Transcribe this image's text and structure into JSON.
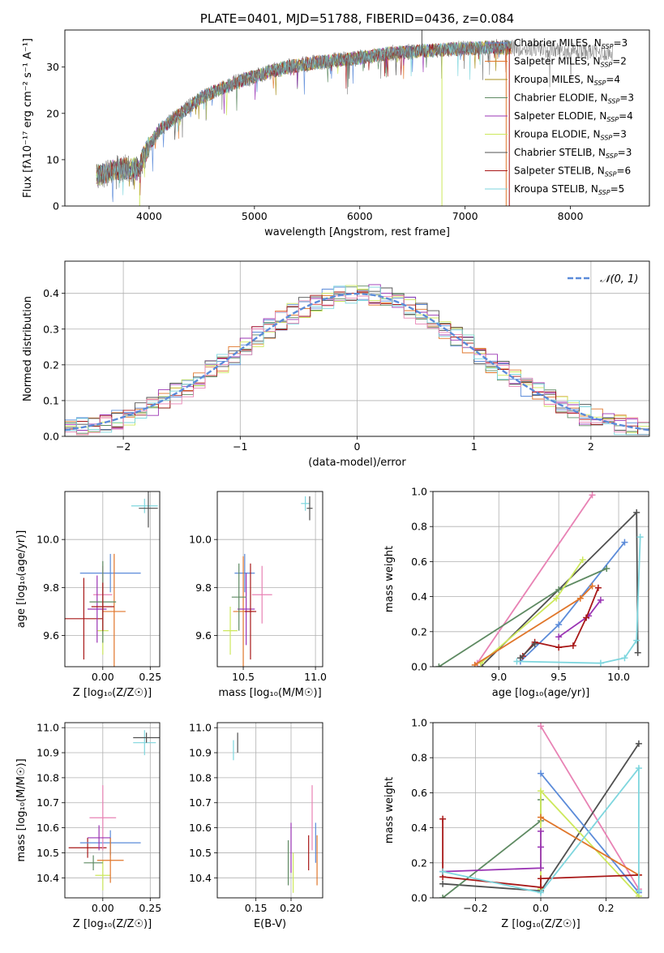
{
  "colors": {
    "chabrier_miles": "#5b8bd9",
    "salpeter_miles": "#e0762a",
    "kroupa_miles": "#a8901e",
    "chabrier_elodie": "#5e8a62",
    "salpeter_elodie": "#9a34b4",
    "kroupa_elodie": "#cde85c",
    "chabrier_stelib": "#505050",
    "salpeter_stelib": "#a81818",
    "kroupa_stelib": "#7ed6de",
    "extra_pink": "#e882b4",
    "normal_curve": "#5b8bd9"
  },
  "chart_data": [
    {
      "id": "spectrum",
      "type": "line",
      "title": "PLATE=0401, MJD=51788, FIBERID=0436, z=0.084",
      "xlabel": "wavelength [Angstrom, rest frame]",
      "ylabel": "Flux [fλ10⁻¹⁷ erg cm⁻² s⁻¹ A⁻¹]",
      "xlim": [
        3200,
        8750
      ],
      "ylim": [
        0,
        38
      ],
      "xticks": [
        "4000",
        "5000",
        "6000",
        "7000",
        "8000"
      ],
      "yticks": [
        "0",
        "10",
        "20",
        "30"
      ],
      "grid": false,
      "legend_position": "top-right",
      "continuum": {
        "wavelength": [
          3500,
          3700,
          3900,
          4000,
          4100,
          4300,
          4500,
          4800,
          5000,
          5300,
          5600,
          6000,
          6300,
          6600,
          7000,
          7300,
          7600,
          8000,
          8400
        ],
        "flux": [
          6.5,
          8.0,
          8.3,
          13.0,
          16.5,
          20.0,
          23.5,
          26.5,
          28.0,
          30.0,
          31.0,
          32.0,
          33.0,
          33.5,
          34.0,
          34.3,
          34.0,
          33.5,
          33.0
        ]
      },
      "series": [
        {
          "name": "Chabrier MILES",
          "nssp": "3",
          "color_key": "chabrier_miles"
        },
        {
          "name": "Salpeter MILES",
          "nssp": "2",
          "color_key": "salpeter_miles"
        },
        {
          "name": "Kroupa MILES",
          "nssp": "4",
          "color_key": "kroupa_miles"
        },
        {
          "name": "Chabrier ELODIE",
          "nssp": "3",
          "color_key": "chabrier_elodie"
        },
        {
          "name": "Salpeter ELODIE",
          "nssp": "4",
          "color_key": "salpeter_elodie"
        },
        {
          "name": "Kroupa ELODIE",
          "nssp": "3",
          "color_key": "kroupa_elodie"
        },
        {
          "name": "Chabrier STELIB",
          "nssp": "3",
          "color_key": "chabrier_stelib"
        },
        {
          "name": "Salpeter STELIB",
          "nssp": "6",
          "color_key": "salpeter_stelib"
        },
        {
          "name": "Kroupa STELIB",
          "nssp": "5",
          "color_key": "kroupa_stelib"
        }
      ],
      "spikes": [
        {
          "x": 3910,
          "y0": 5,
          "y1": 0,
          "color_key": "kroupa_elodie"
        },
        {
          "x": 6590,
          "y0": 33,
          "y1": 38,
          "color_key": "chabrier_stelib"
        },
        {
          "x": 6780,
          "y0": 33,
          "y1": 0,
          "color_key": "kroupa_elodie"
        },
        {
          "x": 7390,
          "y0": 34,
          "y1": 0,
          "color_key": "salpeter_miles"
        },
        {
          "x": 7420,
          "y0": 34,
          "y1": 0,
          "color_key": "salpeter_stelib"
        }
      ]
    },
    {
      "id": "residuals",
      "type": "histogram",
      "xlabel": "(data-model)/error",
      "ylabel": "Normed distribution",
      "xlim": [
        -2.5,
        2.5
      ],
      "ylim": [
        0,
        0.49
      ],
      "xticks": [
        "−2",
        "−1",
        "0",
        "1",
        "2"
      ],
      "yticks": [
        "0.0",
        "0.1",
        "0.2",
        "0.3",
        "0.4"
      ],
      "grid": true,
      "legend": "𝒩(0, 1)",
      "legend_position": "top-right",
      "bin_width": 0.1,
      "series_color_keys": [
        "chabrier_miles",
        "salpeter_miles",
        "chabrier_elodie",
        "salpeter_elodie",
        "kroupa_elodie",
        "chabrier_stelib",
        "salpeter_stelib",
        "kroupa_stelib",
        "extra_pink"
      ]
    },
    {
      "id": "z-age",
      "type": "errorbar",
      "xlabel": "Z [log₁₀(Z/Z☉)]",
      "ylabel": "age  [log₁₀(age/yr)]",
      "xlim": [
        -0.2,
        0.3
      ],
      "ylim": [
        9.47,
        10.2
      ],
      "xticks": [
        "0.00",
        "0.25"
      ],
      "yticks": [
        "9.6",
        "9.8",
        "10.0"
      ],
      "grid": true,
      "points": [
        {
          "x": -0.1,
          "y": 9.67,
          "xerr": 0.1,
          "yerr": 0.17,
          "color_key": "salpeter_stelib"
        },
        {
          "x": 0.0,
          "y": 9.62,
          "xerr": 0.03,
          "yerr": 0.1,
          "color_key": "kroupa_elodie"
        },
        {
          "x": 0.04,
          "y": 9.86,
          "xerr": 0.16,
          "yerr": 0.08,
          "color_key": "chabrier_miles"
        },
        {
          "x": 0.06,
          "y": 9.7,
          "xerr": 0.06,
          "yerr": 0.24,
          "color_key": "salpeter_miles"
        },
        {
          "x": 0.0,
          "y": 9.77,
          "xerr": 0.05,
          "yerr": 0.12,
          "color_key": "extra_pink"
        },
        {
          "x": -0.03,
          "y": 9.71,
          "xerr": 0.05,
          "yerr": 0.14,
          "color_key": "salpeter_elodie"
        },
        {
          "x": 0.0,
          "y": 9.74,
          "xerr": 0.07,
          "yerr": 0.17,
          "color_key": "chabrier_elodie"
        },
        {
          "x": 0.0,
          "y": 9.72,
          "xerr": 0.06,
          "yerr": 0.1,
          "color_key": "salpeter_stelib"
        },
        {
          "x": 0.22,
          "y": 10.14,
          "xerr": 0.07,
          "yerr": 0.03,
          "color_key": "kroupa_stelib"
        },
        {
          "x": 0.24,
          "y": 10.13,
          "xerr": 0.05,
          "yerr": 0.08,
          "color_key": "chabrier_stelib"
        }
      ]
    },
    {
      "id": "mass-age",
      "type": "errorbar",
      "xlabel": "mass [log₁₀(M/M☉)]",
      "ylabel": "",
      "xlim": [
        10.32,
        11.05
      ],
      "ylim": [
        9.47,
        10.2
      ],
      "xticks": [
        "10.5",
        "11.0"
      ],
      "yticks": [
        "9.6",
        "9.8",
        "10.0"
      ],
      "grid": true,
      "points": [
        {
          "x": 10.41,
          "y": 9.62,
          "xerr": 0.05,
          "yerr": 0.1,
          "color_key": "kroupa_elodie"
        },
        {
          "x": 10.51,
          "y": 9.86,
          "xerr": 0.07,
          "yerr": 0.08,
          "color_key": "chabrier_miles"
        },
        {
          "x": 10.5,
          "y": 9.7,
          "xerr": 0.07,
          "yerr": 0.23,
          "color_key": "salpeter_miles"
        },
        {
          "x": 10.63,
          "y": 9.77,
          "xerr": 0.07,
          "yerr": 0.12,
          "color_key": "extra_pink"
        },
        {
          "x": 10.52,
          "y": 9.71,
          "xerr": 0.06,
          "yerr": 0.15,
          "color_key": "salpeter_elodie"
        },
        {
          "x": 10.47,
          "y": 9.76,
          "xerr": 0.05,
          "yerr": 0.14,
          "color_key": "chabrier_elodie"
        },
        {
          "x": 10.55,
          "y": 9.7,
          "xerr": 0.04,
          "yerr": 0.2,
          "color_key": "salpeter_stelib"
        },
        {
          "x": 10.93,
          "y": 10.15,
          "xerr": 0.03,
          "yerr": 0.03,
          "color_key": "kroupa_stelib"
        },
        {
          "x": 10.96,
          "y": 10.13,
          "xerr": 0.02,
          "yerr": 0.05,
          "color_key": "chabrier_stelib"
        }
      ]
    },
    {
      "id": "age-weight",
      "type": "line",
      "xlabel": "age  [log₁₀(age/yr)]",
      "ylabel": "mass weight",
      "xlim": [
        8.45,
        10.25
      ],
      "ylim": [
        0,
        1
      ],
      "xticks": [
        "9.0",
        "9.5",
        "10.0"
      ],
      "yticks": [
        "0.0",
        "0.2",
        "0.4",
        "0.6",
        "0.8",
        "1.0"
      ],
      "grid": true,
      "series": [
        {
          "color_key": "extra_pink",
          "x": [
            8.82,
            9.78
          ],
          "y": [
            0.02,
            0.98
          ]
        },
        {
          "color_key": "chabrier_stelib",
          "x": [
            8.85,
            10.15,
            10.16
          ],
          "y": [
            0.0,
            0.88,
            0.08
          ]
        },
        {
          "color_key": "chabrier_miles",
          "x": [
            9.18,
            9.5,
            10.05
          ],
          "y": [
            0.03,
            0.24,
            0.71
          ]
        },
        {
          "color_key": "chabrier_elodie",
          "x": [
            8.5,
            9.5,
            9.9
          ],
          "y": [
            0.0,
            0.44,
            0.56
          ]
        },
        {
          "color_key": "kroupa_elodie",
          "x": [
            8.85,
            9.48,
            9.7
          ],
          "y": [
            0.02,
            0.39,
            0.61
          ]
        },
        {
          "color_key": "salpeter_miles",
          "x": [
            8.8,
            9.68,
            9.78
          ],
          "y": [
            0.01,
            0.39,
            0.46
          ]
        },
        {
          "color_key": "salpeter_elodie",
          "x": [
            9.5,
            9.75,
            9.85
          ],
          "y": [
            0.17,
            0.29,
            0.38
          ]
        },
        {
          "color_key": "salpeter_stelib",
          "x": [
            9.2,
            9.3,
            9.5,
            9.62,
            9.73,
            9.83
          ],
          "y": [
            0.06,
            0.14,
            0.11,
            0.12,
            0.28,
            0.45
          ]
        },
        {
          "color_key": "chabrier_stelib",
          "x": [
            9.18,
            9.3
          ],
          "y": [
            0.05,
            0.13
          ]
        },
        {
          "color_key": "kroupa_stelib",
          "x": [
            9.15,
            9.85,
            10.05,
            10.15,
            10.18
          ],
          "y": [
            0.03,
            0.02,
            0.05,
            0.15,
            0.74
          ]
        }
      ]
    },
    {
      "id": "z-mass",
      "type": "errorbar",
      "xlabel": "Z [log₁₀(Z/Z☉)]",
      "ylabel": "mass [log₁₀(M/M☉)]",
      "xlim": [
        -0.2,
        0.3
      ],
      "ylim": [
        10.32,
        11.02
      ],
      "xticks": [
        "0.00",
        "0.25"
      ],
      "yticks": [
        "10.4",
        "10.5",
        "10.6",
        "10.7",
        "10.8",
        "10.9",
        "11.0"
      ],
      "grid": true,
      "points": [
        {
          "x": -0.08,
          "y": 10.52,
          "xerr": 0.1,
          "yerr": 0.04,
          "color_key": "salpeter_stelib"
        },
        {
          "x": 0.0,
          "y": 10.41,
          "xerr": 0.04,
          "yerr": 0.06,
          "color_key": "kroupa_elodie"
        },
        {
          "x": 0.04,
          "y": 10.54,
          "xerr": 0.16,
          "yerr": 0.05,
          "color_key": "chabrier_miles"
        },
        {
          "x": 0.04,
          "y": 10.47,
          "xerr": 0.07,
          "yerr": 0.09,
          "color_key": "salpeter_miles"
        },
        {
          "x": 0.0,
          "y": 10.64,
          "xerr": 0.07,
          "yerr": 0.13,
          "color_key": "extra_pink"
        },
        {
          "x": -0.02,
          "y": 10.56,
          "xerr": 0.06,
          "yerr": 0.05,
          "color_key": "salpeter_elodie"
        },
        {
          "x": -0.05,
          "y": 10.46,
          "xerr": 0.05,
          "yerr": 0.03,
          "color_key": "chabrier_elodie"
        },
        {
          "x": 0.22,
          "y": 10.94,
          "xerr": 0.06,
          "yerr": 0.05,
          "color_key": "kroupa_stelib"
        },
        {
          "x": 0.23,
          "y": 10.96,
          "xerr": 0.07,
          "yerr": 0.02,
          "color_key": "chabrier_stelib"
        }
      ]
    },
    {
      "id": "ebv-mass",
      "type": "errorbar",
      "xlabel": "E(B-V)",
      "ylabel": "",
      "xlim": [
        0.095,
        0.245
      ],
      "ylim": [
        10.32,
        11.02
      ],
      "xticks": [
        "0.15",
        "0.20"
      ],
      "yticks": [
        "10.4",
        "10.5",
        "10.6",
        "10.7",
        "10.8",
        "10.9",
        "11.0"
      ],
      "grid": true,
      "points": [
        {
          "x": 0.118,
          "y": 10.91,
          "xerr": 0,
          "yerr": 0.04,
          "color_key": "kroupa_stelib"
        },
        {
          "x": 0.124,
          "y": 10.94,
          "xerr": 0,
          "yerr": 0.04,
          "color_key": "chabrier_stelib"
        },
        {
          "x": 0.196,
          "y": 10.46,
          "xerr": 0,
          "yerr": 0.09,
          "color_key": "chabrier_elodie"
        },
        {
          "x": 0.2,
          "y": 10.52,
          "xerr": 0,
          "yerr": 0.1,
          "color_key": "salpeter_elodie"
        },
        {
          "x": 0.203,
          "y": 10.42,
          "xerr": 0,
          "yerr": 0.08,
          "color_key": "kroupa_elodie"
        },
        {
          "x": 0.225,
          "y": 10.5,
          "xerr": 0,
          "yerr": 0.07,
          "color_key": "salpeter_stelib"
        },
        {
          "x": 0.23,
          "y": 10.64,
          "xerr": 0,
          "yerr": 0.13,
          "color_key": "extra_pink"
        },
        {
          "x": 0.235,
          "y": 10.54,
          "xerr": 0,
          "yerr": 0.08,
          "color_key": "chabrier_miles"
        },
        {
          "x": 0.237,
          "y": 10.47,
          "xerr": 0,
          "yerr": 0.1,
          "color_key": "salpeter_miles"
        }
      ]
    },
    {
      "id": "z-weight",
      "type": "line",
      "xlabel": "Z [log₁₀(Z/Z☉)]",
      "ylabel": "mass weight",
      "xlim": [
        -0.33,
        0.33
      ],
      "ylim": [
        0,
        1
      ],
      "xticks": [
        "−0.2",
        "0.0",
        "0.2"
      ],
      "yticks": [
        "0.0",
        "0.2",
        "0.4",
        "0.6",
        "0.8",
        "1.0"
      ],
      "grid": true,
      "series": [
        {
          "color_key": "extra_pink",
          "x": [
            0.0,
            0.3
          ],
          "y": [
            0.98,
            0.05
          ]
        },
        {
          "color_key": "chabrier_stelib",
          "x": [
            -0.3,
            0.0,
            0.3
          ],
          "y": [
            0.08,
            0.04,
            0.88
          ]
        },
        {
          "color_key": "chabrier_miles",
          "x": [
            0.0,
            0.3
          ],
          "y": [
            0.71,
            0.03
          ]
        },
        {
          "color_key": "chabrier_elodie",
          "x": [
            -0.3,
            0.0,
            0.0
          ],
          "y": [
            0.0,
            0.44,
            0.56
          ]
        },
        {
          "color_key": "kroupa_elodie",
          "x": [
            0.0,
            0.0,
            0.3
          ],
          "y": [
            0.05,
            0.61,
            0.01
          ]
        },
        {
          "color_key": "salpeter_miles",
          "x": [
            0.0,
            0.3
          ],
          "y": [
            0.46,
            0.13
          ]
        },
        {
          "color_key": "salpeter_elodie",
          "x": [
            -0.3,
            0.0,
            0.0,
            0.0
          ],
          "y": [
            0.15,
            0.17,
            0.29,
            0.38
          ]
        },
        {
          "color_key": "salpeter_stelib",
          "x": [
            -0.3,
            -0.3,
            0.0,
            0.0,
            0.3
          ],
          "y": [
            0.45,
            0.12,
            0.06,
            0.11,
            0.13
          ]
        },
        {
          "color_key": "kroupa_stelib",
          "x": [
            -0.3,
            0.0,
            0.3,
            0.3
          ],
          "y": [
            0.15,
            0.03,
            0.74,
            0.04
          ]
        }
      ]
    }
  ]
}
